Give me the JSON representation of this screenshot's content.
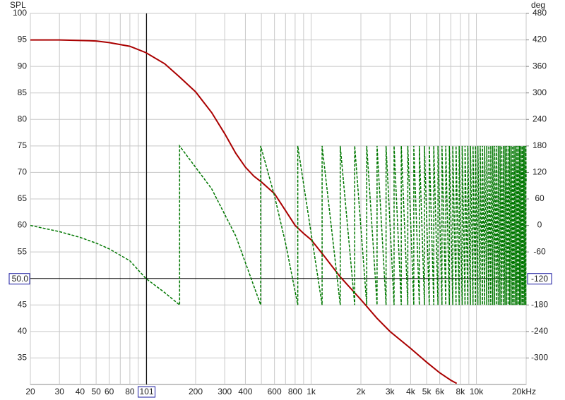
{
  "chart_data": {
    "type": "line",
    "y_label": "SPL",
    "y2_label": "deg",
    "xscale": "log",
    "grid": true,
    "xlim": [
      20,
      20000
    ],
    "ylim": [
      30,
      100
    ],
    "y2lim": [
      -360,
      480
    ],
    "xticks": [
      20,
      30,
      40,
      50,
      60,
      80,
      200,
      300,
      400,
      600,
      800,
      {
        "value": 1000,
        "label": "1k"
      },
      {
        "value": 2000,
        "label": "2k"
      },
      {
        "value": 3000,
        "label": "3k"
      },
      {
        "value": 4000,
        "label": "4k"
      },
      {
        "value": 5000,
        "label": "5k"
      },
      {
        "value": 6000,
        "label": "6k"
      },
      {
        "value": 8000,
        "label": "8k"
      },
      {
        "value": 10000,
        "label": "10k"
      },
      {
        "value": 20000,
        "label": "20kHz"
      }
    ],
    "xminor": [
      70,
      90,
      100,
      500,
      700,
      900,
      7000,
      9000
    ],
    "yticks": [
      35,
      40,
      45,
      55,
      60,
      65,
      70,
      75,
      80,
      85,
      90,
      95,
      100
    ],
    "y2ticks": [
      -300,
      -240,
      -180,
      -60,
      0,
      60,
      120,
      180,
      240,
      300,
      360,
      420,
      480
    ],
    "cursor": {
      "x": {
        "value": 101,
        "label": "101"
      },
      "y": {
        "value": 50,
        "label": "50.0"
      },
      "y2": {
        "value": -120,
        "label": "-120"
      }
    },
    "series": [
      {
        "color": "#aa0000",
        "x": [
          20,
          30,
          40,
          50,
          60,
          80,
          100,
          130,
          160,
          200,
          250,
          300,
          350,
          400,
          450,
          500,
          600,
          700,
          800,
          900,
          1000,
          1200,
          1500,
          2000,
          2500,
          3000,
          4000,
          5000,
          6000,
          7000,
          7600
        ],
        "values": [
          95,
          95,
          94.9,
          94.8,
          94.5,
          93.8,
          92.6,
          90.5,
          88,
          85.2,
          81.3,
          77.3,
          73.6,
          71,
          69.3,
          68.2,
          66,
          62.8,
          60,
          58.5,
          57.3,
          54.2,
          50.3,
          46,
          42.5,
          40,
          36.8,
          34.2,
          32.2,
          30.8,
          30.2
        ]
      },
      {
        "color": "#007700",
        "axis": "y2",
        "x": [
          20,
          30,
          40,
          50,
          60,
          80,
          100,
          130,
          160,
          160,
          250,
          350,
          495,
          495,
          600,
          700,
          830,
          830,
          1165,
          1165,
          1500,
          1500,
          1835,
          1835,
          2170,
          2170,
          2505,
          2505,
          2840,
          2840,
          3175,
          3175,
          3510,
          3510,
          3845,
          3845,
          4180,
          4180,
          4515,
          4515,
          4850,
          4850,
          5185,
          5185,
          5520,
          5520,
          5855,
          5855,
          6190,
          6190,
          6525,
          6525,
          6860,
          6860,
          7195,
          7195,
          7530,
          7530,
          7865,
          7865,
          8200,
          8200,
          8535,
          8535,
          8870,
          8870,
          9205,
          9205,
          9540,
          9540,
          9875,
          9875,
          10210,
          10210,
          10545,
          10545,
          10880,
          10880,
          11215,
          11215,
          11550,
          11550,
          11885,
          11885,
          12220,
          12220,
          12555,
          12555,
          12890,
          12890,
          13225,
          13225,
          13560,
          13560,
          13895,
          13895,
          14230,
          14230,
          14565,
          14565,
          14900,
          14900,
          15235,
          15235,
          15570,
          15570,
          15905,
          15905,
          16240,
          16240,
          16575,
          16575,
          16910,
          16910,
          17245,
          17245,
          17580,
          17580,
          17915,
          17915,
          18250,
          18250,
          18585,
          18585,
          18920,
          18920,
          19255,
          19255,
          19590,
          19590,
          19925,
          19925,
          20000
        ],
        "values": [
          0,
          -14,
          -27,
          -40,
          -53,
          -80,
          -120,
          -152,
          -180,
          180,
          83,
          -24,
          -180,
          180,
          67,
          -40,
          -180,
          180,
          -180,
          180,
          -180,
          180,
          -180,
          180,
          -180,
          180,
          -180,
          180,
          -180,
          180,
          -180,
          180,
          -180,
          180,
          -180,
          180,
          -180,
          180,
          -180,
          180,
          -180,
          180,
          -180,
          180,
          -180,
          180,
          -180,
          180,
          -180,
          180,
          -180,
          180,
          -180,
          180,
          -180,
          180,
          -180,
          180,
          -180,
          180,
          -180,
          180,
          -180,
          180,
          -180,
          180,
          -180,
          180,
          -180,
          180,
          -180,
          180,
          -180,
          180,
          -180,
          180,
          -180,
          180,
          -180,
          180,
          -180,
          180,
          -180,
          180,
          -180,
          180,
          -180,
          180,
          -180,
          180,
          -180,
          180,
          -180,
          180,
          -180,
          180,
          -180,
          180,
          -180,
          180,
          -180,
          180,
          -180,
          180,
          -180,
          180,
          -180,
          180,
          -180,
          180,
          -180,
          180,
          -180,
          180,
          -180,
          180,
          -180,
          180,
          -180,
          180,
          -180,
          180,
          -180,
          180,
          -180,
          180,
          -180,
          180,
          -180,
          180,
          -180,
          180,
          99
        ]
      }
    ]
  }
}
